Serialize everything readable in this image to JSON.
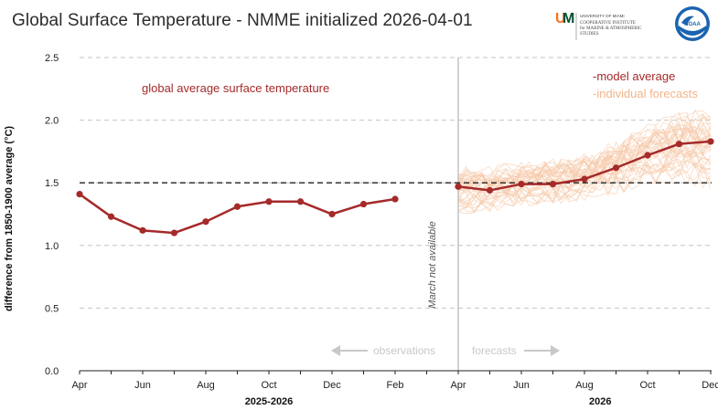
{
  "title": "Global Surface Temperature - NMME initialized 2026-04-01",
  "logos": {
    "um_text": [
      "UNIVERSITY OF MIAMI",
      "COOPERATIVE INSTITUTE",
      "for MARINE & ATMOSPHERIC",
      "STUDIES"
    ],
    "noaa_text": "NOAA"
  },
  "colors": {
    "observed": "#a52a2a",
    "model_average": "#a52a2a",
    "individual_forecasts": "#f5c9a8",
    "threshold": "#222222",
    "divider": "#bbbbbb",
    "annotation": "#c8c8c8"
  },
  "chart_data": {
    "type": "line",
    "ylabel": "difference from 1850-1900 average (°C)",
    "ylim": [
      0.0,
      2.5
    ],
    "yticks": [
      "0.0",
      "0.5",
      "1.0",
      "1.5",
      "2.0",
      "2.5"
    ],
    "xtick_labels": [
      "Apr",
      "Jun",
      "Aug",
      "Oct",
      "Dec",
      "Feb",
      "Apr",
      "Jun",
      "Aug",
      "Oct",
      "Dec"
    ],
    "period_labels": [
      "2025-2026",
      "2026"
    ],
    "grid": "horizontal dashed",
    "threshold": 1.5,
    "observed": {
      "label": "global average surface temperature",
      "months": [
        "Apr",
        "May",
        "Jun",
        "Jul",
        "Aug",
        "Sep",
        "Oct",
        "Nov",
        "Dec",
        "Jan",
        "Feb"
      ],
      "values": [
        1.41,
        1.23,
        1.12,
        1.1,
        1.19,
        1.31,
        1.35,
        1.35,
        1.25,
        1.33,
        1.37
      ]
    },
    "model_average": {
      "label": "-model average",
      "months": [
        "Apr",
        "May",
        "Jun",
        "Jul",
        "Aug",
        "Sep",
        "Oct",
        "Nov",
        "Dec"
      ],
      "values": [
        1.47,
        1.44,
        1.49,
        1.49,
        1.53,
        1.62,
        1.72,
        1.81,
        1.83
      ]
    },
    "individual_forecasts": {
      "label": "-individual forecasts",
      "months": [
        "Apr",
        "May",
        "Jun",
        "Jul",
        "Aug",
        "Sep",
        "Oct",
        "Nov",
        "Dec"
      ],
      "lower": [
        1.25,
        1.27,
        1.31,
        1.33,
        1.36,
        1.41,
        1.47,
        1.5,
        1.45
      ],
      "upper": [
        1.63,
        1.63,
        1.68,
        1.69,
        1.73,
        1.84,
        1.98,
        2.06,
        2.1
      ],
      "member_count": 40
    },
    "annotations": {
      "missing": "March not available",
      "observations": "observations",
      "forecasts": "forecasts"
    }
  }
}
